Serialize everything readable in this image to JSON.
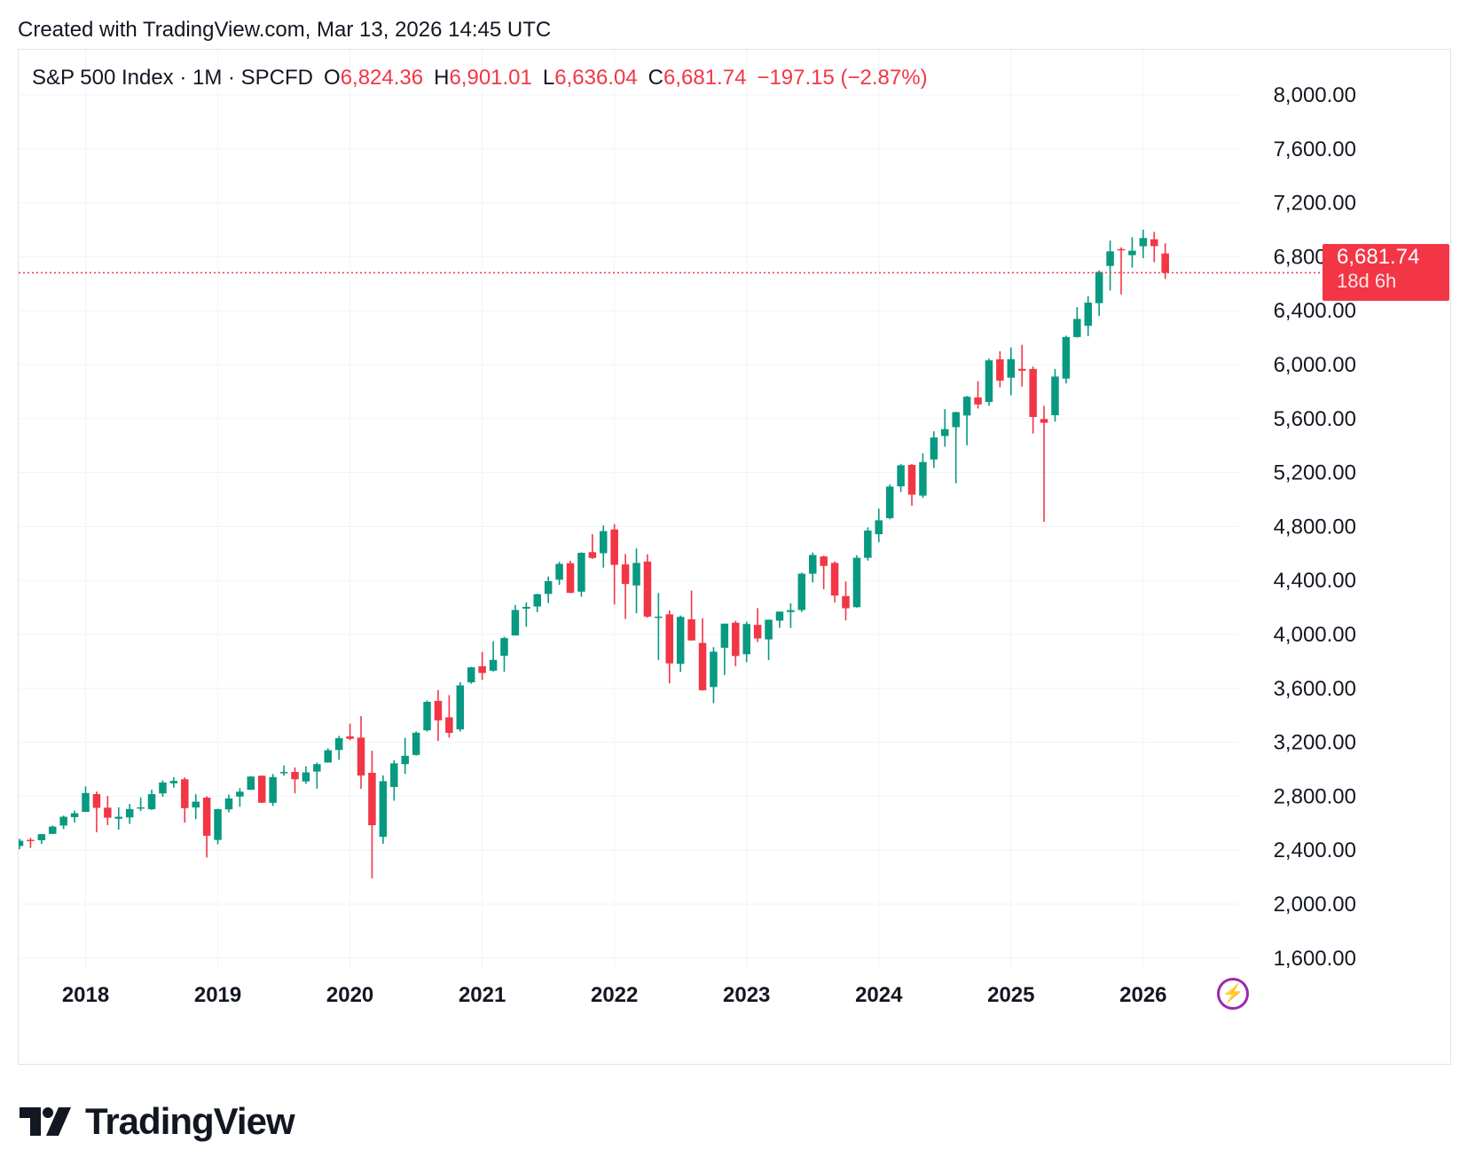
{
  "header": {
    "created_text": "Created with TradingView.com, Mar 13, 2026 14:45 UTC"
  },
  "legend": {
    "symbol": "S&P 500 Index · 1M · SPCFD",
    "open_label": "O",
    "open": "6,824.36",
    "high_label": "H",
    "high": "6,901.01",
    "low_label": "L",
    "low": "6,636.04",
    "close_label": "C",
    "close": "6,681.74",
    "change": "−197.15 (−2.87%)"
  },
  "price_tag": {
    "value": "6,681.74",
    "countdown": "18d 6h"
  },
  "colors": {
    "up": "#089981",
    "down": "#f23645",
    "grid": "#f0f3fa",
    "text": "#131722",
    "accent": "#9c27b0"
  },
  "brand": {
    "name": "TradingView",
    "icon": "tradingview-logo-icon"
  },
  "bolt_icon": "lightning-bolt-icon",
  "chart_data": {
    "type": "candlestick",
    "title": "S&P 500 Index · 1M · SPCFD",
    "interval": "1M",
    "xlabel": "",
    "ylabel": "",
    "y_ticks": [
      1600,
      2000,
      2400,
      2800,
      3200,
      3600,
      4000,
      4400,
      4800,
      5200,
      5600,
      6000,
      6400,
      6800,
      7200,
      7600,
      8000
    ],
    "y_tick_labels": [
      "1,600.00",
      "2,000.00",
      "2,400.00",
      "2,800.00",
      "3,200.00",
      "3,600.00",
      "4,000.00",
      "4,400.00",
      "4,800.00",
      "5,200.00",
      "5,600.00",
      "6,000.00",
      "6,400.00",
      "6,800.00",
      "7,200.00",
      "7,600.00",
      "8,000.00"
    ],
    "ylim": [
      1350,
      8150
    ],
    "x_ticks": [
      "2018",
      "2019",
      "2020",
      "2021",
      "2022",
      "2023",
      "2024",
      "2025",
      "2026"
    ],
    "last_price": 6681.74,
    "candles": [
      {
        "date": "2017-07",
        "o": 2431,
        "h": 2484,
        "l": 2407,
        "c": 2470
      },
      {
        "date": "2017-08",
        "o": 2477,
        "h": 2491,
        "l": 2417,
        "c": 2472
      },
      {
        "date": "2017-09",
        "o": 2474,
        "h": 2519,
        "l": 2446,
        "c": 2519
      },
      {
        "date": "2017-10",
        "o": 2521,
        "h": 2582,
        "l": 2520,
        "c": 2575
      },
      {
        "date": "2017-11",
        "o": 2583,
        "h": 2657,
        "l": 2557,
        "c": 2648
      },
      {
        "date": "2017-12",
        "o": 2645,
        "h": 2695,
        "l": 2605,
        "c": 2674
      },
      {
        "date": "2018-01",
        "o": 2684,
        "h": 2873,
        "l": 2683,
        "c": 2824
      },
      {
        "date": "2018-02",
        "o": 2816,
        "h": 2835,
        "l": 2533,
        "c": 2714
      },
      {
        "date": "2018-03",
        "o": 2715,
        "h": 2802,
        "l": 2586,
        "c": 2641
      },
      {
        "date": "2018-04",
        "o": 2633,
        "h": 2718,
        "l": 2553,
        "c": 2648
      },
      {
        "date": "2018-05",
        "o": 2643,
        "h": 2743,
        "l": 2595,
        "c": 2705
      },
      {
        "date": "2018-06",
        "o": 2718,
        "h": 2791,
        "l": 2691,
        "c": 2718
      },
      {
        "date": "2018-07",
        "o": 2704,
        "h": 2849,
        "l": 2698,
        "c": 2816
      },
      {
        "date": "2018-08",
        "o": 2821,
        "h": 2917,
        "l": 2796,
        "c": 2902
      },
      {
        "date": "2018-09",
        "o": 2896,
        "h": 2941,
        "l": 2864,
        "c": 2914
      },
      {
        "date": "2018-10",
        "o": 2926,
        "h": 2940,
        "l": 2604,
        "c": 2712
      },
      {
        "date": "2018-11",
        "o": 2717,
        "h": 2816,
        "l": 2631,
        "c": 2760
      },
      {
        "date": "2018-12",
        "o": 2790,
        "h": 2800,
        "l": 2346,
        "c": 2507
      },
      {
        "date": "2019-01",
        "o": 2476,
        "h": 2708,
        "l": 2444,
        "c": 2704
      },
      {
        "date": "2019-02",
        "o": 2703,
        "h": 2813,
        "l": 2681,
        "c": 2784
      },
      {
        "date": "2019-03",
        "o": 2798,
        "h": 2860,
        "l": 2722,
        "c": 2834
      },
      {
        "date": "2019-04",
        "o": 2848,
        "h": 2950,
        "l": 2848,
        "c": 2946
      },
      {
        "date": "2019-05",
        "o": 2952,
        "h": 2955,
        "l": 2750,
        "c": 2752
      },
      {
        "date": "2019-06",
        "o": 2751,
        "h": 2965,
        "l": 2728,
        "c": 2942
      },
      {
        "date": "2019-07",
        "o": 2972,
        "h": 3028,
        "l": 2952,
        "c": 2980
      },
      {
        "date": "2019-08",
        "o": 2980,
        "h": 3014,
        "l": 2822,
        "c": 2926
      },
      {
        "date": "2019-09",
        "o": 2910,
        "h": 3022,
        "l": 2892,
        "c": 2977
      },
      {
        "date": "2019-10",
        "o": 2983,
        "h": 3050,
        "l": 2856,
        "c": 3038
      },
      {
        "date": "2019-11",
        "o": 3050,
        "h": 3155,
        "l": 3050,
        "c": 3141
      },
      {
        "date": "2019-12",
        "o": 3143,
        "h": 3248,
        "l": 3070,
        "c": 3231
      },
      {
        "date": "2020-01",
        "o": 3244,
        "h": 3338,
        "l": 3215,
        "c": 3226
      },
      {
        "date": "2020-02",
        "o": 3235,
        "h": 3394,
        "l": 2855,
        "c": 2954
      },
      {
        "date": "2020-03",
        "o": 2974,
        "h": 3137,
        "l": 2192,
        "c": 2585
      },
      {
        "date": "2020-04",
        "o": 2499,
        "h": 2955,
        "l": 2448,
        "c": 2912
      },
      {
        "date": "2020-05",
        "o": 2869,
        "h": 3068,
        "l": 2767,
        "c": 3044
      },
      {
        "date": "2020-06",
        "o": 3038,
        "h": 3233,
        "l": 2966,
        "c": 3100
      },
      {
        "date": "2020-07",
        "o": 3106,
        "h": 3280,
        "l": 3101,
        "c": 3271
      },
      {
        "date": "2020-08",
        "o": 3289,
        "h": 3510,
        "l": 3280,
        "c": 3500
      },
      {
        "date": "2020-09",
        "o": 3507,
        "h": 3588,
        "l": 3210,
        "c": 3363
      },
      {
        "date": "2020-10",
        "o": 3385,
        "h": 3550,
        "l": 3234,
        "c": 3270
      },
      {
        "date": "2020-11",
        "o": 3296,
        "h": 3646,
        "l": 3279,
        "c": 3622
      },
      {
        "date": "2020-12",
        "o": 3645,
        "h": 3760,
        "l": 3634,
        "c": 3756
      },
      {
        "date": "2021-01",
        "o": 3764,
        "h": 3870,
        "l": 3662,
        "c": 3714
      },
      {
        "date": "2021-02",
        "o": 3731,
        "h": 3950,
        "l": 3725,
        "c": 3811
      },
      {
        "date": "2021-03",
        "o": 3842,
        "h": 3983,
        "l": 3723,
        "c": 3973
      },
      {
        "date": "2021-04",
        "o": 3992,
        "h": 4218,
        "l": 3992,
        "c": 4181
      },
      {
        "date": "2021-05",
        "o": 4191,
        "h": 4238,
        "l": 4056,
        "c": 4204
      },
      {
        "date": "2021-06",
        "o": 4207,
        "h": 4302,
        "l": 4165,
        "c": 4298
      },
      {
        "date": "2021-07",
        "o": 4300,
        "h": 4429,
        "l": 4233,
        "c": 4395
      },
      {
        "date": "2021-08",
        "o": 4406,
        "h": 4538,
        "l": 4367,
        "c": 4523
      },
      {
        "date": "2021-09",
        "o": 4528,
        "h": 4546,
        "l": 4306,
        "c": 4308
      },
      {
        "date": "2021-10",
        "o": 4317,
        "h": 4609,
        "l": 4279,
        "c": 4605
      },
      {
        "date": "2021-11",
        "o": 4610,
        "h": 4743,
        "l": 4560,
        "c": 4567
      },
      {
        "date": "2021-12",
        "o": 4602,
        "h": 4808,
        "l": 4495,
        "c": 4766
      },
      {
        "date": "2022-01",
        "o": 4778,
        "h": 4818,
        "l": 4222,
        "c": 4516
      },
      {
        "date": "2022-02",
        "o": 4519,
        "h": 4596,
        "l": 4115,
        "c": 4374
      },
      {
        "date": "2022-03",
        "o": 4363,
        "h": 4637,
        "l": 4157,
        "c": 4530
      },
      {
        "date": "2022-04",
        "o": 4540,
        "h": 4594,
        "l": 4124,
        "c": 4132
      },
      {
        "date": "2022-05",
        "o": 4131,
        "h": 4307,
        "l": 3811,
        "c": 4132
      },
      {
        "date": "2022-06",
        "o": 4149,
        "h": 4178,
        "l": 3637,
        "c": 3785
      },
      {
        "date": "2022-07",
        "o": 3782,
        "h": 4140,
        "l": 3722,
        "c": 4130
      },
      {
        "date": "2022-08",
        "o": 4112,
        "h": 4325,
        "l": 3955,
        "c": 3955
      },
      {
        "date": "2022-09",
        "o": 3937,
        "h": 4120,
        "l": 3584,
        "c": 3586
      },
      {
        "date": "2022-10",
        "o": 3610,
        "h": 3906,
        "l": 3491,
        "c": 3872
      },
      {
        "date": "2022-11",
        "o": 3901,
        "h": 4080,
        "l": 3699,
        "c": 4080
      },
      {
        "date": "2022-12",
        "o": 4087,
        "h": 4101,
        "l": 3764,
        "c": 3840
      },
      {
        "date": "2023-01",
        "o": 3853,
        "h": 4095,
        "l": 3794,
        "c": 4077
      },
      {
        "date": "2023-02",
        "o": 4071,
        "h": 4195,
        "l": 3943,
        "c": 3970
      },
      {
        "date": "2023-03",
        "o": 3963,
        "h": 4110,
        "l": 3809,
        "c": 4109
      },
      {
        "date": "2023-04",
        "o": 4102,
        "h": 4170,
        "l": 4049,
        "c": 4169
      },
      {
        "date": "2023-05",
        "o": 4166,
        "h": 4231,
        "l": 4048,
        "c": 4180
      },
      {
        "date": "2023-06",
        "o": 4181,
        "h": 4458,
        "l": 4166,
        "c": 4450
      },
      {
        "date": "2023-07",
        "o": 4450,
        "h": 4607,
        "l": 4385,
        "c": 4589
      },
      {
        "date": "2023-08",
        "o": 4578,
        "h": 4584,
        "l": 4335,
        "c": 4508
      },
      {
        "date": "2023-09",
        "o": 4530,
        "h": 4541,
        "l": 4238,
        "c": 4288
      },
      {
        "date": "2023-10",
        "o": 4284,
        "h": 4393,
        "l": 4104,
        "c": 4194
      },
      {
        "date": "2023-11",
        "o": 4202,
        "h": 4587,
        "l": 4198,
        "c": 4568
      },
      {
        "date": "2023-12",
        "o": 4568,
        "h": 4794,
        "l": 4547,
        "c": 4770
      },
      {
        "date": "2024-01",
        "o": 4743,
        "h": 4932,
        "l": 4683,
        "c": 4846
      },
      {
        "date": "2024-02",
        "o": 4862,
        "h": 5111,
        "l": 4853,
        "c": 5096
      },
      {
        "date": "2024-03",
        "o": 5098,
        "h": 5264,
        "l": 5057,
        "c": 5254
      },
      {
        "date": "2024-04",
        "o": 5257,
        "h": 5264,
        "l": 4954,
        "c": 5036
      },
      {
        "date": "2024-05",
        "o": 5029,
        "h": 5342,
        "l": 5012,
        "c": 5278
      },
      {
        "date": "2024-06",
        "o": 5297,
        "h": 5506,
        "l": 5234,
        "c": 5460
      },
      {
        "date": "2024-07",
        "o": 5471,
        "h": 5670,
        "l": 5391,
        "c": 5522
      },
      {
        "date": "2024-08",
        "o": 5537,
        "h": 5651,
        "l": 5120,
        "c": 5648
      },
      {
        "date": "2024-09",
        "o": 5623,
        "h": 5768,
        "l": 5402,
        "c": 5762
      },
      {
        "date": "2024-10",
        "o": 5757,
        "h": 5878,
        "l": 5675,
        "c": 5705
      },
      {
        "date": "2024-11",
        "o": 5723,
        "h": 6045,
        "l": 5696,
        "c": 6032
      },
      {
        "date": "2024-12",
        "o": 6040,
        "h": 6100,
        "l": 5832,
        "c": 5882
      },
      {
        "date": "2025-01",
        "o": 5903,
        "h": 6128,
        "l": 5773,
        "c": 6041
      },
      {
        "date": "2025-02",
        "o": 5969,
        "h": 6147,
        "l": 5837,
        "c": 5955
      },
      {
        "date": "2025-03",
        "o": 5968,
        "h": 5986,
        "l": 5489,
        "c": 5612
      },
      {
        "date": "2025-04",
        "o": 5597,
        "h": 5695,
        "l": 4835,
        "c": 5569
      },
      {
        "date": "2025-05",
        "o": 5625,
        "h": 5968,
        "l": 5578,
        "c": 5912
      },
      {
        "date": "2025-06",
        "o": 5897,
        "h": 6215,
        "l": 5861,
        "c": 6205
      },
      {
        "date": "2025-07",
        "o": 6205,
        "h": 6427,
        "l": 6201,
        "c": 6339
      },
      {
        "date": "2025-08",
        "o": 6288,
        "h": 6508,
        "l": 6212,
        "c": 6460
      },
      {
        "date": "2025-09",
        "o": 6456,
        "h": 6699,
        "l": 6361,
        "c": 6688
      },
      {
        "date": "2025-10",
        "o": 6732,
        "h": 6920,
        "l": 6550,
        "c": 6840
      },
      {
        "date": "2025-11",
        "o": 6857,
        "h": 6870,
        "l": 6521,
        "c": 6849
      },
      {
        "date": "2025-12",
        "o": 6812,
        "h": 6945,
        "l": 6720,
        "c": 6845
      },
      {
        "date": "2026-01",
        "o": 6878,
        "h": 7001,
        "l": 6790,
        "c": 6939
      },
      {
        "date": "2026-02",
        "o": 6930,
        "h": 6985,
        "l": 6760,
        "c": 6879
      },
      {
        "date": "2026-03",
        "o": 6824.36,
        "h": 6901.01,
        "l": 6636.04,
        "c": 6681.74
      }
    ]
  }
}
